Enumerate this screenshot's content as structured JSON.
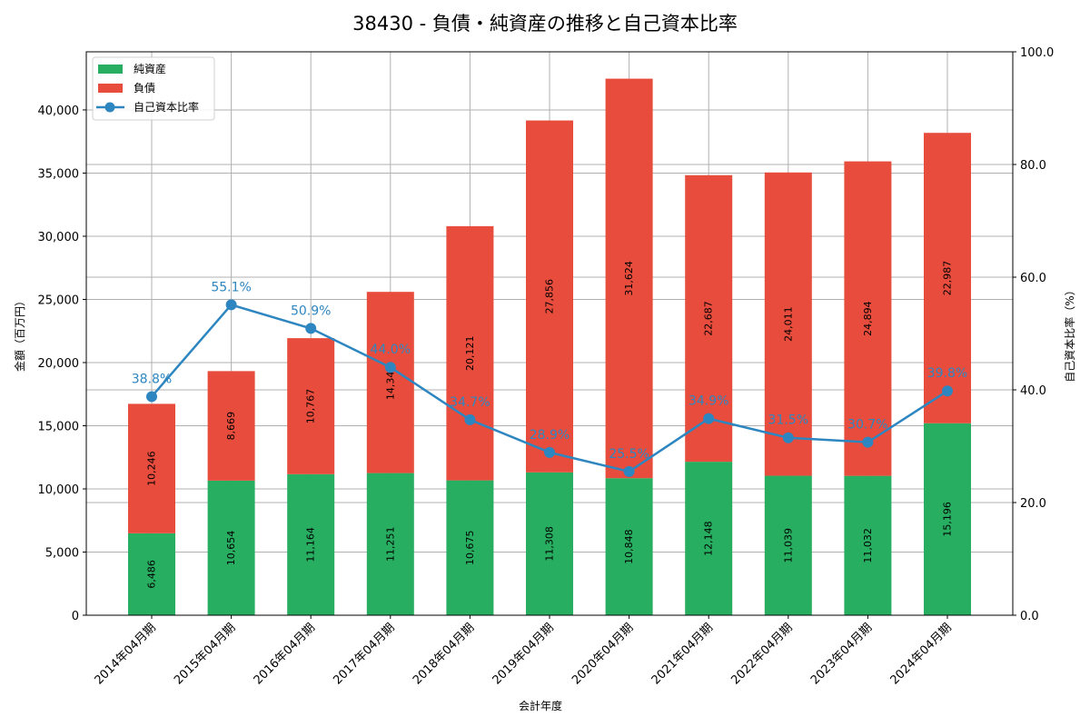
{
  "title": "38430 - 負債・純資産の推移と自己資本比率",
  "colors": {
    "equity": "#27ae60",
    "liabilities": "#e74c3c",
    "ratio_line": "#2e86c1",
    "grid": "#b0b0b0"
  },
  "legend": {
    "items": [
      {
        "label": "純資産",
        "kind": "bar",
        "color": "#27ae60"
      },
      {
        "label": "負債",
        "kind": "bar",
        "color": "#e74c3c"
      },
      {
        "label": "自己資本比率",
        "kind": "line",
        "color": "#2e86c1"
      }
    ]
  },
  "chart_data": {
    "type": "bar",
    "subtype": "stacked bar + line (dual axis)",
    "title": "38430 - 負債・純資産の推移と自己資本比率",
    "xlabel": "会計年度",
    "ylabel": "金額（百万円）",
    "y2label": "自己資本比率（%）",
    "categories": [
      "2014年04月期",
      "2015年04月期",
      "2016年04月期",
      "2017年04月期",
      "2018年04月期",
      "2019年04月期",
      "2020年04月期",
      "2021年04月期",
      "2022年04月期",
      "2023年04月期",
      "2024年04月期"
    ],
    "series": [
      {
        "name": "純資産",
        "type": "bar",
        "stack": "total",
        "axis": "left",
        "values": [
          6486,
          10654,
          11164,
          11251,
          10675,
          11308,
          10848,
          12148,
          11039,
          11032,
          15196
        ],
        "labels": [
          "6,486",
          "10,654",
          "11,164",
          "11,251",
          "10,675",
          "11,308",
          "10,848",
          "12,148",
          "11,039",
          "11,032",
          "15,196"
        ]
      },
      {
        "name": "負債",
        "type": "bar",
        "stack": "total",
        "axis": "left",
        "values": [
          10246,
          8669,
          10767,
          14345,
          20121,
          27856,
          31624,
          22687,
          24011,
          24894,
          22987
        ],
        "labels": [
          "10,246",
          "8,669",
          "10,767",
          "14,345",
          "20,121",
          "27,856",
          "31,624",
          "22,687",
          "24,011",
          "24,894",
          "22,987"
        ]
      },
      {
        "name": "自己資本比率",
        "type": "line",
        "axis": "right",
        "values": [
          38.8,
          55.1,
          50.9,
          44.0,
          34.7,
          28.9,
          25.5,
          34.9,
          31.5,
          30.7,
          39.8
        ],
        "labels": [
          "38.8%",
          "55.1%",
          "50.9%",
          "44.0%",
          "34.7%",
          "28.9%",
          "25.5%",
          "34.9%",
          "31.5%",
          "30.7%",
          "39.8%"
        ]
      }
    ],
    "ylim": [
      0,
      44600
    ],
    "y_ticks": [
      0,
      5000,
      10000,
      15000,
      20000,
      25000,
      30000,
      35000,
      40000
    ],
    "y_tick_labels": [
      "0",
      "5,000",
      "10,000",
      "15,000",
      "20,000",
      "25,000",
      "30,000",
      "35,000",
      "40,000"
    ],
    "y2lim": [
      0,
      100
    ],
    "y2_ticks": [
      0,
      20,
      40,
      60,
      80,
      100
    ],
    "y2_tick_labels": [
      "0.0",
      "20.0",
      "40.0",
      "60.0",
      "80.0",
      "100.0"
    ],
    "grid": true,
    "legend_position": "upper left"
  }
}
